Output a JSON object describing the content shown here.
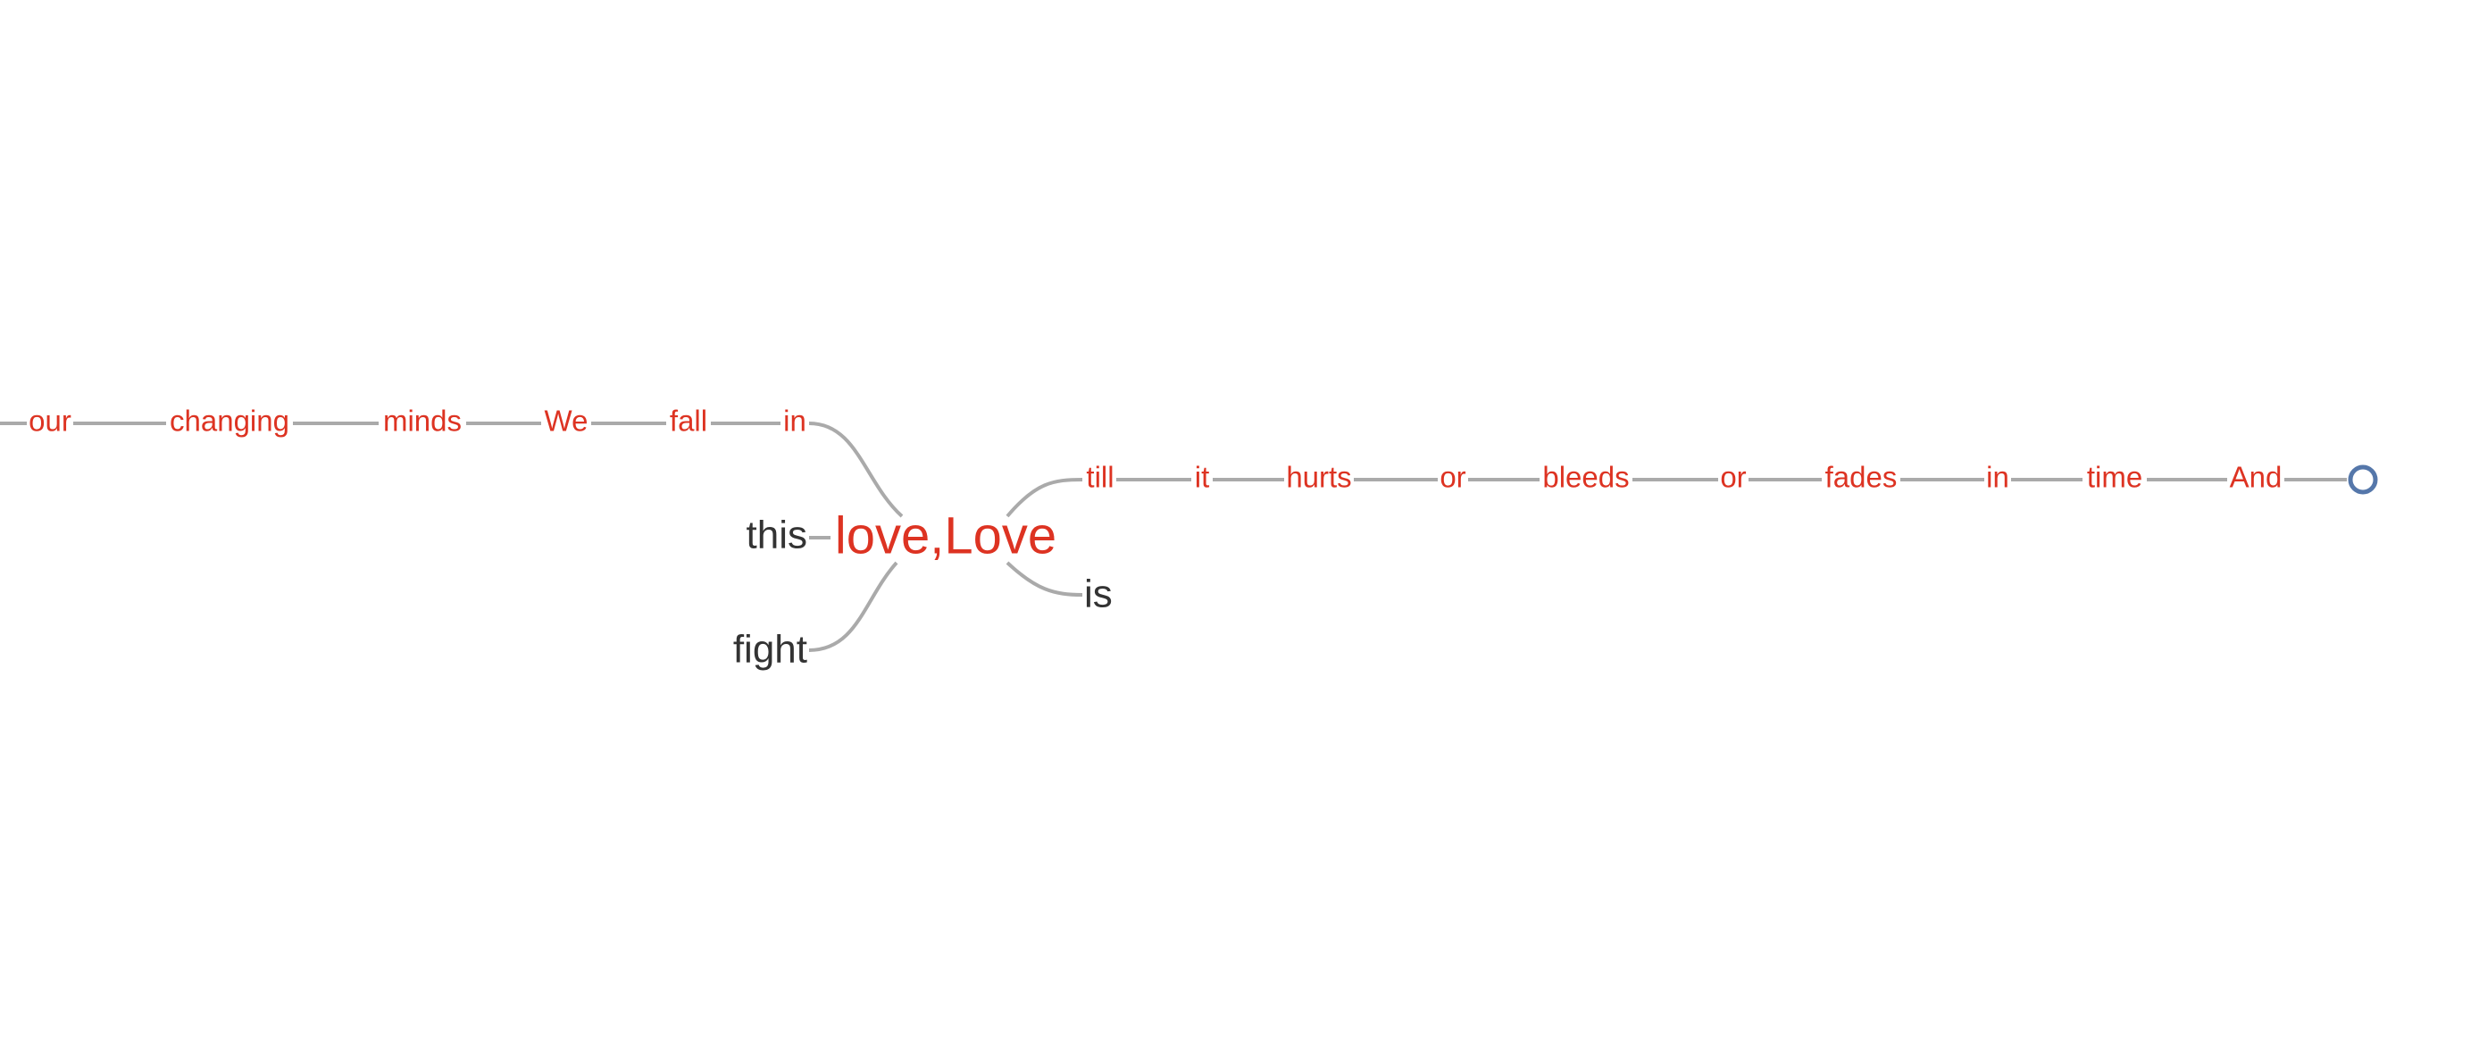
{
  "word_tree": {
    "focus": "love,Love",
    "upper_branch": [
      "our",
      "changing",
      "minds",
      "We",
      "fall",
      "in"
    ],
    "left_branches": [
      "this",
      "fight"
    ],
    "right_branch": [
      "till",
      "it",
      "hurts",
      "or",
      "bleeds",
      "or",
      "fades",
      "in",
      "time",
      "And"
    ],
    "right_alt": "is",
    "highlight_color": "#dd3322",
    "plain_color": "#333333",
    "link_color": "#aaaaaa",
    "root_color": "#5577aa"
  }
}
